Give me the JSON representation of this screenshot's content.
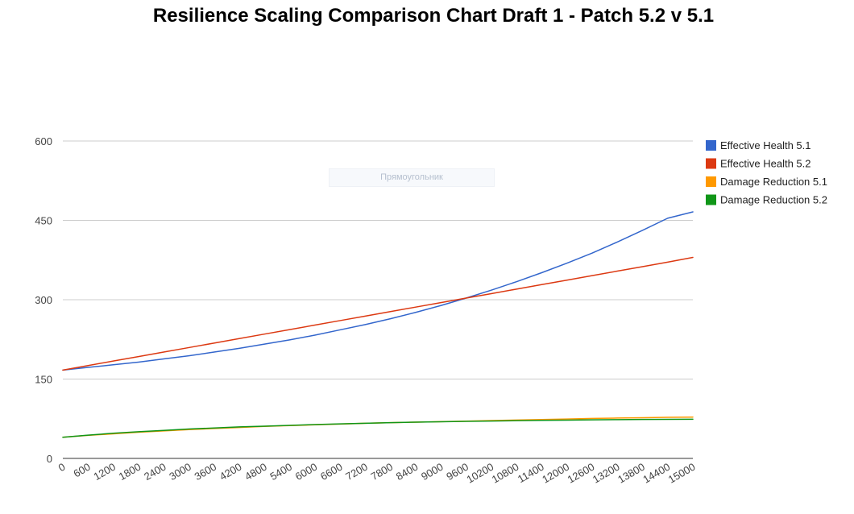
{
  "chart_data": {
    "type": "line",
    "title": "Resilience Scaling Comparison Chart Draft 1 - Patch 5.2 v 5.1",
    "overlay_label": "Прямоугольник",
    "xlabel": "",
    "ylabel": "",
    "ylim": [
      0,
      600
    ],
    "yticks": [
      "0",
      "150",
      "300",
      "450",
      "600"
    ],
    "x": [
      0,
      600,
      1200,
      1800,
      2400,
      3000,
      3600,
      4200,
      4800,
      5400,
      6000,
      6600,
      7200,
      7800,
      8400,
      9000,
      9600,
      10200,
      10800,
      11400,
      12000,
      12600,
      13200,
      13800,
      14400,
      15000
    ],
    "xtick_labels": [
      "0",
      "600",
      "1200",
      "1800",
      "2400",
      "3000",
      "3600",
      "4200",
      "4800",
      "5400",
      "6000",
      "6600",
      "7200",
      "7800",
      "8400",
      "9000",
      "9600",
      "10200",
      "10800",
      "11400",
      "12000",
      "12600",
      "13200",
      "13800",
      "14400",
      "15000"
    ],
    "legend_position": "right",
    "series": [
      {
        "name": "Effective Health 5.1",
        "color": "#3366cc",
        "values": [
          167,
          172,
          177,
          182,
          188,
          194,
          201,
          208,
          216,
          224,
          233,
          243,
          253,
          264,
          276,
          289,
          303,
          318,
          334,
          351,
          369,
          388,
          409,
          431,
          454,
          466
        ]
      },
      {
        "name": "Effective Health 5.2",
        "color": "#dc3912",
        "values": [
          167,
          175.5,
          184,
          192.5,
          201,
          209.5,
          218,
          226.5,
          235,
          243.5,
          252,
          260.5,
          269,
          277.5,
          286,
          294.5,
          303,
          311.5,
          320,
          328.5,
          337,
          345.5,
          354,
          362.5,
          371,
          380
        ]
      },
      {
        "name": "Damage Reduction 5.1",
        "color": "#ff9900",
        "values": [
          40,
          43.5,
          46.5,
          49.5,
          52,
          54.5,
          56.5,
          58.5,
          60.5,
          62,
          63.5,
          65,
          66.5,
          67.5,
          68.5,
          69.5,
          70.5,
          71.5,
          72.5,
          73.5,
          74.5,
          75.5,
          76.3,
          77,
          77.6,
          78
        ]
      },
      {
        "name": "Damage Reduction 5.2",
        "color": "#109618",
        "values": [
          40,
          44,
          47.5,
          50.5,
          53,
          55.5,
          57.5,
          59.5,
          61,
          62.5,
          64,
          65.3,
          66.5,
          67.5,
          68.5,
          69.3,
          70,
          70.7,
          71.3,
          71.9,
          72.4,
          72.9,
          73.3,
          73.6,
          73.8,
          74
        ]
      }
    ]
  }
}
